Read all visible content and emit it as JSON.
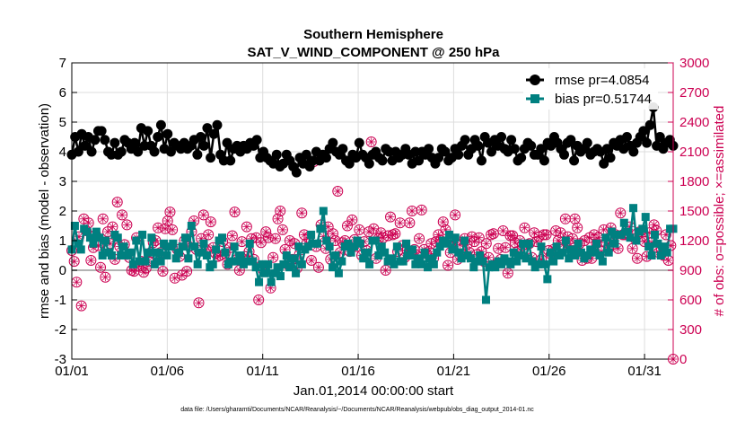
{
  "chart_data": {
    "type": "line",
    "title": "Southern Hemisphere",
    "subtitle": "SAT_V_WIND_COMPONENT @ 250 hPa",
    "xlabel": "Jan.01,2014 00:00:00 start",
    "ylabel": "rmse and bias (model - observation)",
    "y2label": "# of obs: o=possible; ×=assimilated",
    "footer": "data file: /Users/gharamti/Documents/NCAR/Reanalysis/~/Documents/NCAR/Reanalysis/webpub/obs_diag_output_2014-01.nc",
    "x_range": [
      0,
      31.5
    ],
    "ylim": [
      -3,
      7
    ],
    "y2lim": [
      0,
      3000
    ],
    "x_ticks": [
      {
        "label": "01/01",
        "value": 0
      },
      {
        "label": "01/06",
        "value": 5
      },
      {
        "label": "01/11",
        "value": 10
      },
      {
        "label": "01/16",
        "value": 15
      },
      {
        "label": "01/21",
        "value": 20
      },
      {
        "label": "01/26",
        "value": 25
      },
      {
        "label": "01/31",
        "value": 30
      }
    ],
    "y_ticks": [
      "-3",
      "-2",
      "-1",
      "0",
      "1",
      "2",
      "3",
      "4",
      "5",
      "6",
      "7"
    ],
    "y2_ticks": [
      "0",
      "300",
      "600",
      "900",
      "1200",
      "1500",
      "1800",
      "2100",
      "2400",
      "2700",
      "3000"
    ],
    "grid": true,
    "legend_position": "top-right",
    "colors": {
      "rmse": "#000000",
      "bias": "#008080",
      "obs": "#cc0052",
      "zero": "#b3b3b3",
      "grid": "#dddddd"
    },
    "series": [
      {
        "name": "rmse pr=4.0854",
        "marker": "circle",
        "values": [
          3.9,
          4.5,
          4.0,
          4.6,
          4.2,
          4.5,
          4.0,
          4.4,
          4.7,
          4.7,
          4.4,
          4.0,
          3.9,
          4.3,
          3.9,
          4.0,
          4.4,
          4.3,
          4.1,
          4.3,
          4.0,
          4.8,
          4.2,
          4.7,
          4.2,
          4.0,
          4.5,
          4.9,
          4.1,
          4.6,
          4.0,
          4.3,
          4.2,
          4.1,
          4.3,
          4.1,
          4.2,
          4.4,
          3.9,
          4.5,
          4.2,
          4.8,
          3.8,
          4.6,
          4.9,
          3.9,
          3.7,
          4.3,
          3.7,
          4.1,
          4.2,
          4.0,
          4.2,
          4.1,
          4.3,
          4.2,
          4.4,
          3.8,
          4.0,
          3.8,
          3.7,
          3.6,
          3.9,
          3.5,
          3.6,
          3.9,
          3.7,
          3.5,
          3.3,
          3.8,
          3.6,
          3.9,
          3.5,
          3.7,
          4.0,
          3.7,
          3.9,
          3.8,
          4.1,
          4.3,
          4.0,
          3.9,
          4.1,
          3.7,
          3.6,
          3.9,
          3.8,
          4.3,
          3.9,
          3.8,
          3.6,
          3.9,
          4.0,
          3.8,
          3.7,
          4.1,
          4.0,
          3.7,
          4.0,
          3.8,
          3.9,
          4.1,
          3.9,
          3.6,
          4.0,
          3.7,
          4.0,
          3.9,
          4.1,
          3.8,
          3.6,
          3.8,
          4.1,
          4.0,
          3.7,
          3.8,
          4.1,
          3.9,
          4.2,
          4.4,
          3.9,
          4.1,
          4.4,
          4.2,
          3.7,
          4.5,
          4.3,
          4.0,
          4.4,
          4.2,
          4.5,
          4.1,
          4.0,
          4.4,
          4.1,
          3.7,
          3.8,
          4.1,
          4.3,
          4.2,
          3.9,
          3.9,
          4.1,
          3.7,
          4.3,
          4.2,
          4.5,
          4.3,
          4.1,
          3.9,
          4.3,
          4.4,
          3.7,
          4.2,
          4.0,
          4.1,
          4.3,
          3.9,
          4.0,
          4.1,
          4.0,
          3.6,
          4.1,
          3.8,
          4.3,
          4.2,
          4.4,
          4.1,
          4.5,
          4.2,
          4.0,
          4.3,
          4.5,
          4.7,
          4.3,
          4.9,
          5.5,
          4.2,
          4.5,
          4.1,
          4.3,
          4.4,
          4.2
        ]
      },
      {
        "name": "bias pr=0.51744",
        "marker": "square",
        "values": [
          0.7,
          1.5,
          0.9,
          0.7,
          1.4,
          1.3,
          1.1,
          0.9,
          1.3,
          1.1,
          0.5,
          1.0,
          0.6,
          0.5,
          1.2,
          1.1,
          0.5,
          0.8,
          0.5,
          0.6,
          0.2,
          1.0,
          0.3,
          1.2,
          0.3,
          0.6,
          1.1,
          0.2,
          0.6,
          0.3,
          0.9,
          0.5,
          0.8,
          0.9,
          0.4,
          0.6,
          0.8,
          1.1,
          0.4,
          1.5,
          0.8,
          0.2,
          0.6,
          0.9,
          0.5,
          0.1,
          0.2,
          0.7,
          1.0,
          1.1,
          0.6,
          0.2,
          0.3,
          0.8,
          0.3,
          0.5,
          0.2,
          0.3,
          0.9,
          0.3,
          0.1,
          -0.4,
          0.2,
          -0.1,
          0.2,
          -0.4,
          -0.1,
          0.1,
          -0.2,
          0.2,
          0.5,
          0.1,
          0.4,
          -0.1,
          0.8,
          0.2,
          0.7,
          0.8,
          1.2,
          0.9,
          0.9,
          1.4,
          2.0,
          1.0,
          0.8,
          0.1,
          0.5,
          -0.1,
          0.3,
          0.8,
          0.9,
          0.6,
          0.8,
          1.0,
          0.9,
          0.4,
          0.6,
          0.2,
          1.0,
          1.0,
          0.5,
          0.8,
          0.6,
          0.3,
          0.4,
          0.2,
          0.8,
          0.3,
          0.3,
          0.9,
          0.5,
          0.7,
          0.2,
          0.4,
          0.2,
          0.6,
          0.1,
          0.4,
          0.2,
          0.6,
          0.8,
          1.0,
          0.9,
          1.2,
          0.7,
          1.1,
          0.6,
          0.4,
          1.0,
          0.5,
          0.4,
          0.1,
          0.3,
          0.5,
          0.3,
          -1.0,
          0.1,
          0.2,
          0.1,
          0.3,
          0.2,
          0.4,
          0.3,
          0.2,
          0.6,
          0.3,
          0.5,
          0.9,
          0.4,
          0.9,
          0.3,
          0.1,
          0.2,
          0.8,
          0.2,
          -0.3,
          0.6,
          0.3,
          0.8,
          0.5,
          0.6,
          1.0,
          0.4,
          0.7,
          0.5,
          0.9,
          0.6,
          0.4,
          0.5,
          0.7,
          0.6,
          0.9,
          0.5,
          0.3,
          1.1,
          0.6,
          1.3,
          0.9,
          1.2,
          1.2,
          1.6,
          1.3,
          1.1,
          2.1,
          1.0,
          1.3,
          1.4,
          1.8,
          0.8,
          0.5,
          1.2,
          0.9,
          0.5,
          0.8,
          0.6,
          1.4,
          1.4
        ]
      },
      {
        "name": "# of obs",
        "axis": "right",
        "marker": "circle-asterisk",
        "values": [
          1100,
          990,
          780,
          1240,
          540,
          1420,
          1300,
          1380,
          1000,
          1130,
          1260,
          1150,
          930,
          1420,
          830,
          1290,
          1170,
          1340,
          1010,
          1590,
          1140,
          1460,
          1160,
          1360,
          1030,
          900,
          890,
          1230,
          940,
          990,
          880,
          920,
          990,
          1080,
          1180,
          1200,
          1330,
          1080,
          890,
          1320,
          1400,
          1490,
          1310,
          820,
          1110,
          1040,
          850,
          1200,
          890,
          1140,
          1290,
          1400,
          1110,
          570,
          1220,
          1460,
          1110,
          1260,
          1390,
          1130,
          1070,
          1040,
          1050,
          1190,
          1070,
          960,
          1130,
          1250,
          1490,
          1010,
          900,
          1190,
          1040,
          1340,
          1090,
          1220,
          1010,
          1230,
          600,
          1180,
          900,
          1290,
          1230,
          720,
          1030,
          1220,
          1420,
          1500,
          1310,
          1110,
          960,
          1200,
          1010,
          1170,
          920,
          1060,
          1480,
          1260,
          1170,
          1230,
          1000,
          2000,
          1140,
          930,
          1360,
          1240,
          1120,
          1340,
          1010,
          1270,
          1200,
          1700,
          1080,
          1180,
          1200,
          1350,
          1090,
          1410,
          1210,
          1140,
          1310,
          1050,
          1190,
          1100,
          1290,
          2200,
          1320,
          1020,
          1220,
          1280,
          1230,
          900,
          1250,
          1440,
          1260,
          1270,
          1090,
          1380,
          1150,
          1030,
          1100,
          1380,
          1500,
          1110,
          1050,
          1220,
          1510,
          1110,
          1070,
          1090,
          1170,
          1020,
          1190,
          1260,
          1200,
          1390,
          1310,
          950,
          1080,
          1190,
          1460,
          1010,
          1160,
          1060,
          1220,
          1160,
          1080,
          1240,
          1190,
          1060,
          1230,
          1090,
          990,
          1170,
          1030,
          1260,
          1270,
          960,
          1120,
          1010,
          1300,
          1130,
          870,
          1250,
          1250,
          1180,
          1090,
          1200,
          1150,
          1330,
          1160,
          1170,
          1030,
          1280,
          1190,
          1240,
          1010,
          1260,
          1260,
          1100,
          1060,
          1110,
          1300,
          1200,
          1280,
          1160,
          1420,
          1240,
          1150,
          1220,
          1420,
          1330,
          1170,
          1000,
          1200,
          1020,
          1230,
          1020,
          1260,
          1170,
          1230,
          1090,
          1310,
          1180,
          1120,
          1330,
          1160,
          1260,
          1120,
          1480,
          1260,
          1260,
          1280,
          1340,
          1120,
          1220,
          1020,
          1290,
          1240,
          1190,
          1040,
          1280,
          1180,
          1360,
          1300,
          1080,
          1100,
          1050,
          1260,
          1000,
          1150,
          0
        ]
      }
    ]
  }
}
